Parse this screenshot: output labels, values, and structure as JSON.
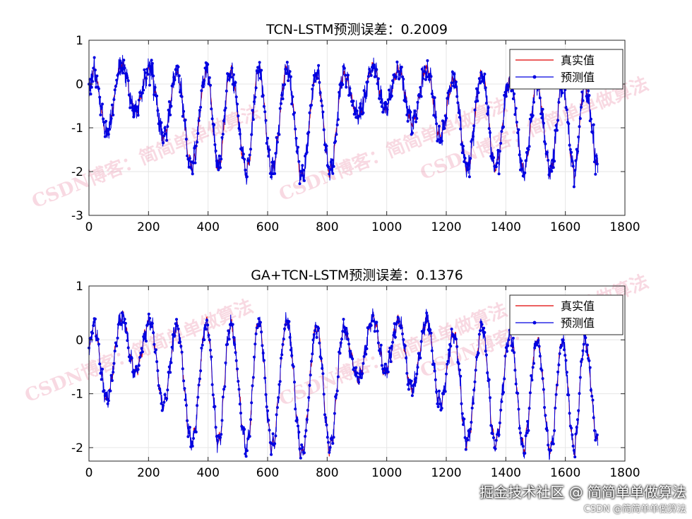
{
  "chart_data": [
    {
      "type": "line",
      "title": "TCN-LSTM预测误差：0.2009",
      "xlim": [
        0,
        1800
      ],
      "ylim": [
        -3,
        1
      ],
      "xticks": [
        0,
        200,
        400,
        600,
        800,
        1000,
        1200,
        1400,
        1600,
        1800
      ],
      "yticks": [
        -3,
        -2,
        -1,
        0,
        1
      ],
      "grid": true,
      "legend_position": "top-right",
      "n_points": 1710,
      "series": [
        {
          "name": "真实值",
          "color": "#e00000",
          "marker": "none"
        },
        {
          "name": "预测值",
          "color": "#0000e0",
          "marker": "dot"
        }
      ],
      "cycle_peaks": [
        {
          "x": 15,
          "y": 0.3
        },
        {
          "x": 110,
          "y": 0.45
        },
        {
          "x": 205,
          "y": 0.35
        },
        {
          "x": 295,
          "y": 0.25
        },
        {
          "x": 395,
          "y": 0.3
        },
        {
          "x": 475,
          "y": 0.3
        },
        {
          "x": 570,
          "y": 0.35
        },
        {
          "x": 665,
          "y": 0.35
        },
        {
          "x": 765,
          "y": 0.25
        },
        {
          "x": 855,
          "y": 0.2
        },
        {
          "x": 955,
          "y": 0.4
        },
        {
          "x": 1040,
          "y": 0.35
        },
        {
          "x": 1135,
          "y": 0.35
        },
        {
          "x": 1225,
          "y": 0.1
        },
        {
          "x": 1320,
          "y": 0.25
        },
        {
          "x": 1415,
          "y": 0.1
        },
        {
          "x": 1505,
          "y": 0.0
        },
        {
          "x": 1590,
          "y": 0.0
        },
        {
          "x": 1665,
          "y": 0.0
        }
      ],
      "cycle_troughs": [
        {
          "x": 60,
          "y": -1.1
        },
        {
          "x": 155,
          "y": -0.6
        },
        {
          "x": 250,
          "y": -1.2
        },
        {
          "x": 345,
          "y": -1.9
        },
        {
          "x": 435,
          "y": -1.9
        },
        {
          "x": 530,
          "y": -2.0
        },
        {
          "x": 615,
          "y": -2.0
        },
        {
          "x": 715,
          "y": -2.1
        },
        {
          "x": 810,
          "y": -2.0
        },
        {
          "x": 905,
          "y": -0.7
        },
        {
          "x": 995,
          "y": -0.6
        },
        {
          "x": 1085,
          "y": -0.9
        },
        {
          "x": 1180,
          "y": -1.2
        },
        {
          "x": 1270,
          "y": -1.9
        },
        {
          "x": 1365,
          "y": -1.9
        },
        {
          "x": 1460,
          "y": -2.0
        },
        {
          "x": 1550,
          "y": -2.0
        },
        {
          "x": 1630,
          "y": -2.0
        },
        {
          "x": 1710,
          "y": -1.9
        }
      ],
      "prediction_noise": 0.2
    },
    {
      "type": "line",
      "title": "GA+TCN-LSTM预测误差：0.1376",
      "xlim": [
        0,
        1800
      ],
      "ylim": [
        -2.25,
        1
      ],
      "xticks": [
        0,
        200,
        400,
        600,
        800,
        1000,
        1200,
        1400,
        1600,
        1800
      ],
      "yticks": [
        -2,
        -1,
        0,
        1
      ],
      "grid": true,
      "legend_position": "top-right",
      "n_points": 1710,
      "series": [
        {
          "name": "真实值",
          "color": "#e00000",
          "marker": "none"
        },
        {
          "name": "预测值",
          "color": "#0000e0",
          "marker": "dot"
        }
      ],
      "cycle_peaks": [
        {
          "x": 15,
          "y": 0.3
        },
        {
          "x": 110,
          "y": 0.45
        },
        {
          "x": 205,
          "y": 0.35
        },
        {
          "x": 295,
          "y": 0.25
        },
        {
          "x": 395,
          "y": 0.3
        },
        {
          "x": 475,
          "y": 0.3
        },
        {
          "x": 570,
          "y": 0.35
        },
        {
          "x": 665,
          "y": 0.35
        },
        {
          "x": 765,
          "y": 0.25
        },
        {
          "x": 855,
          "y": 0.2
        },
        {
          "x": 955,
          "y": 0.4
        },
        {
          "x": 1040,
          "y": 0.35
        },
        {
          "x": 1135,
          "y": 0.35
        },
        {
          "x": 1225,
          "y": 0.1
        },
        {
          "x": 1320,
          "y": 0.25
        },
        {
          "x": 1415,
          "y": 0.1
        },
        {
          "x": 1505,
          "y": 0.0
        },
        {
          "x": 1590,
          "y": 0.0
        },
        {
          "x": 1665,
          "y": 0.0
        }
      ],
      "cycle_troughs": [
        {
          "x": 60,
          "y": -1.1
        },
        {
          "x": 155,
          "y": -0.6
        },
        {
          "x": 250,
          "y": -1.2
        },
        {
          "x": 345,
          "y": -1.9
        },
        {
          "x": 435,
          "y": -1.9
        },
        {
          "x": 530,
          "y": -2.0
        },
        {
          "x": 615,
          "y": -2.0
        },
        {
          "x": 715,
          "y": -2.1
        },
        {
          "x": 810,
          "y": -2.0
        },
        {
          "x": 905,
          "y": -0.7
        },
        {
          "x": 995,
          "y": -0.6
        },
        {
          "x": 1085,
          "y": -0.9
        },
        {
          "x": 1180,
          "y": -1.2
        },
        {
          "x": 1270,
          "y": -1.9
        },
        {
          "x": 1365,
          "y": -1.9
        },
        {
          "x": 1460,
          "y": -2.0
        },
        {
          "x": 1550,
          "y": -2.0
        },
        {
          "x": 1630,
          "y": -2.0
        },
        {
          "x": 1710,
          "y": -1.9
        }
      ],
      "prediction_noise": 0.1
    }
  ],
  "watermarks": {
    "top": [
      "CSDN博客：简简单单做算法",
      "CSDN博客：简简单单做算法",
      "CSDN博客：简简单单做算法"
    ],
    "bottom": [
      "CSDN博客：简简单单做算法",
      "CSDN博客：简简单单做算法",
      "CSDN博客：简简单单做算法"
    ],
    "color": "#e67896"
  },
  "footer": {
    "line1": "掘金技术社区 @ 简简单单做算法",
    "line2": "CSDN @简简单单做算法"
  }
}
